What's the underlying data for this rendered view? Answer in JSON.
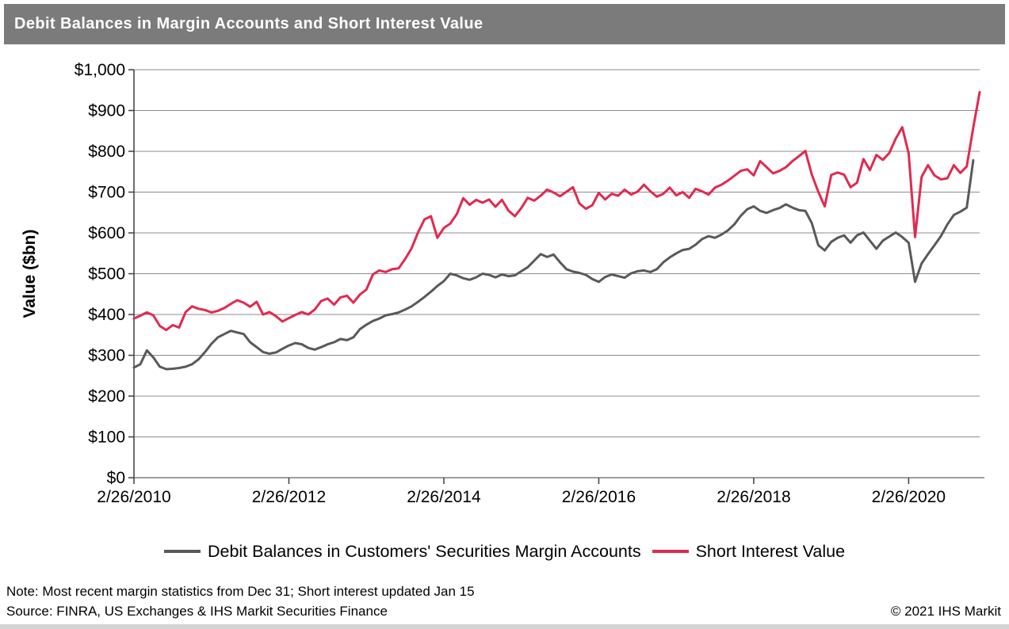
{
  "header": {
    "title": "Debit Balances in Margin Accounts and Short Interest Value"
  },
  "theme": {
    "title_bar_bg": "#7b7b7b",
    "title_text": "#ffffff",
    "gridline_color": "#8c8c8c",
    "axis_color": "#3f3f3f",
    "x_axis_color": "#9e9e9e",
    "series_gray": "#595959",
    "series_red": "#e2294e"
  },
  "chart_data": {
    "type": "line",
    "title": "Debit Balances in Margin Accounts and Short Interest Value",
    "xlabel": "",
    "ylabel": "Value ($bn)",
    "ylim": [
      0,
      1000
    ],
    "y_tick_step": 100,
    "y_tick_labels": [
      "$0",
      "$100",
      "$200",
      "$300",
      "$400",
      "$500",
      "$600",
      "$700",
      "$800",
      "$900",
      "$1,000"
    ],
    "x_tick_labels": [
      "2/26/2010",
      "2/26/2012",
      "2/26/2014",
      "2/26/2016",
      "2/26/2018",
      "2/26/2020"
    ],
    "x_tick_indices": [
      0,
      24,
      48,
      72,
      96,
      120
    ],
    "grid": "horizontal",
    "legend_position": "bottom",
    "x_interval": "monthly (estimated sampling of weekly data)",
    "x": [
      "2/2010",
      "3/2010",
      "4/2010",
      "5/2010",
      "6/2010",
      "7/2010",
      "8/2010",
      "9/2010",
      "10/2010",
      "11/2010",
      "12/2010",
      "1/2011",
      "2/2011",
      "3/2011",
      "4/2011",
      "5/2011",
      "6/2011",
      "7/2011",
      "8/2011",
      "9/2011",
      "10/2011",
      "11/2011",
      "12/2011",
      "1/2012",
      "2/2012",
      "3/2012",
      "4/2012",
      "5/2012",
      "6/2012",
      "7/2012",
      "8/2012",
      "9/2012",
      "10/2012",
      "11/2012",
      "12/2012",
      "1/2013",
      "2/2013",
      "3/2013",
      "4/2013",
      "5/2013",
      "6/2013",
      "7/2013",
      "8/2013",
      "9/2013",
      "10/2013",
      "11/2013",
      "12/2013",
      "1/2014",
      "2/2014",
      "3/2014",
      "4/2014",
      "5/2014",
      "6/2014",
      "7/2014",
      "8/2014",
      "9/2014",
      "10/2014",
      "11/2014",
      "12/2014",
      "1/2015",
      "2/2015",
      "3/2015",
      "4/2015",
      "5/2015",
      "6/2015",
      "7/2015",
      "8/2015",
      "9/2015",
      "10/2015",
      "11/2015",
      "12/2015",
      "1/2016",
      "2/2016",
      "3/2016",
      "4/2016",
      "5/2016",
      "6/2016",
      "7/2016",
      "8/2016",
      "9/2016",
      "10/2016",
      "11/2016",
      "12/2016",
      "1/2017",
      "2/2017",
      "3/2017",
      "4/2017",
      "5/2017",
      "6/2017",
      "7/2017",
      "8/2017",
      "9/2017",
      "10/2017",
      "11/2017",
      "12/2017",
      "1/2018",
      "2/2018",
      "3/2018",
      "4/2018",
      "5/2018",
      "6/2018",
      "7/2018",
      "8/2018",
      "9/2018",
      "10/2018",
      "11/2018",
      "12/2018",
      "1/2019",
      "2/2019",
      "3/2019",
      "4/2019",
      "5/2019",
      "6/2019",
      "7/2019",
      "8/2019",
      "9/2019",
      "10/2019",
      "11/2019",
      "12/2019",
      "1/2020",
      "2/2020",
      "3/2020",
      "4/2020",
      "5/2020",
      "6/2020",
      "7/2020",
      "8/2020",
      "9/2020",
      "10/2020",
      "11/2020",
      "12/2020",
      "1/2021"
    ],
    "series": [
      {
        "name": "Debit Balances in Customers' Securities Margin Accounts",
        "color": "#595959",
        "values": [
          270,
          278,
          312,
          295,
          272,
          266,
          267,
          269,
          272,
          278,
          290,
          308,
          328,
          344,
          352,
          360,
          356,
          352,
          332,
          320,
          308,
          304,
          307,
          316,
          324,
          330,
          327,
          318,
          314,
          320,
          327,
          332,
          340,
          337,
          344,
          364,
          375,
          384,
          390,
          398,
          401,
          405,
          412,
          420,
          431,
          443,
          456,
          470,
          482,
          500,
          496,
          489,
          485,
          491,
          500,
          497,
          491,
          498,
          494,
          496,
          506,
          516,
          532,
          548,
          541,
          547,
          528,
          511,
          505,
          502,
          497,
          487,
          480,
          492,
          498,
          494,
          490,
          501,
          506,
          508,
          504,
          511,
          528,
          540,
          550,
          558,
          561,
          571,
          585,
          592,
          588,
          596,
          606,
          621,
          642,
          658,
          665,
          654,
          649,
          656,
          661,
          670,
          662,
          656,
          654,
          624,
          570,
          557,
          578,
          588,
          594,
          576,
          594,
          601,
          581,
          561,
          581,
          591,
          601,
          590,
          576,
          480,
          525,
          548,
          570,
          592,
          621,
          644,
          652,
          662,
          778,
          null
        ]
      },
      {
        "name": "Short Interest Value",
        "color": "#e2294e",
        "values": [
          390,
          397,
          405,
          398,
          372,
          362,
          374,
          368,
          406,
          420,
          414,
          411,
          405,
          409,
          416,
          426,
          435,
          429,
          419,
          431,
          400,
          406,
          396,
          383,
          391,
          399,
          406,
          400,
          412,
          433,
          439,
          424,
          442,
          446,
          429,
          449,
          461,
          498,
          508,
          504,
          511,
          513,
          536,
          562,
          601,
          633,
          641,
          588,
          612,
          623,
          646,
          685,
          669,
          681,
          674,
          682,
          664,
          681,
          655,
          641,
          661,
          686,
          679,
          691,
          706,
          699,
          690,
          701,
          712,
          672,
          659,
          668,
          698,
          682,
          696,
          691,
          706,
          694,
          701,
          718,
          702,
          689,
          696,
          711,
          692,
          700,
          686,
          708,
          702,
          694,
          711,
          718,
          728,
          740,
          752,
          756,
          741,
          776,
          761,
          746,
          752,
          761,
          776,
          788,
          801,
          743,
          701,
          665,
          742,
          748,
          743,
          712,
          723,
          781,
          754,
          791,
          779,
          796,
          831,
          859,
          795,
          590,
          737,
          766,
          741,
          731,
          734,
          766,
          747,
          763,
          858,
          945
        ]
      }
    ]
  },
  "legend": {
    "items": [
      {
        "label": "Debit Balances in Customers' Securities Margin Accounts",
        "color": "#595959"
      },
      {
        "label": "Short Interest Value",
        "color": "#e2294e"
      }
    ]
  },
  "footer": {
    "note": "Note: Most recent margin statistics from Dec 31; Short interest updated Jan 15",
    "source": "Source: FINRA, US Exchanges & IHS Markit Securities Finance",
    "copyright": "© 2021 IHS Markit"
  }
}
